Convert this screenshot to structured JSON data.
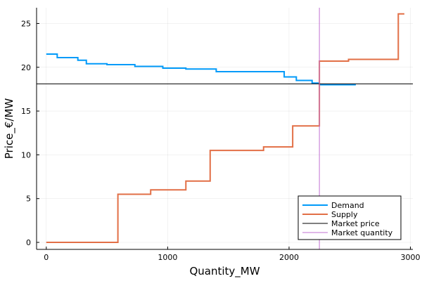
{
  "chart_data": {
    "type": "line",
    "xlabel": "Quantity_MW",
    "ylabel": "Price_€/MW",
    "xlim": [
      -80,
      3020
    ],
    "ylim": [
      -0.8,
      26.8
    ],
    "xticks": [
      0,
      1000,
      2000,
      3000
    ],
    "yticks": [
      0,
      5,
      10,
      15,
      20,
      25
    ],
    "grid": true,
    "legend_position": "bottom-right",
    "series": [
      {
        "name": "Demand",
        "color": "#009af9",
        "kind": "step",
        "x": [
          0,
          90,
          260,
          330,
          500,
          730,
          960,
          1150,
          1400,
          1660,
          1960,
          2060,
          2190,
          2250,
          2550
        ],
        "y": [
          21.5,
          21.1,
          20.8,
          20.4,
          20.3,
          20.1,
          19.9,
          19.8,
          19.5,
          19.5,
          18.9,
          18.5,
          18.2,
          18.0,
          18.0
        ]
      },
      {
        "name": "Supply",
        "color": "#e26f46",
        "kind": "step",
        "x": [
          0,
          590,
          860,
          1150,
          1350,
          1790,
          2030,
          2250,
          2490,
          2900,
          2950
        ],
        "y": [
          0,
          5.5,
          6.0,
          7.0,
          10.5,
          10.9,
          13.3,
          20.7,
          20.9,
          26.1,
          26.1
        ]
      },
      {
        "name": "Market price",
        "color": "#000000",
        "kind": "hline",
        "value": 18.1
      },
      {
        "name": "Market quantity",
        "color": "#c271d2",
        "kind": "vline",
        "value": 2250
      }
    ]
  }
}
